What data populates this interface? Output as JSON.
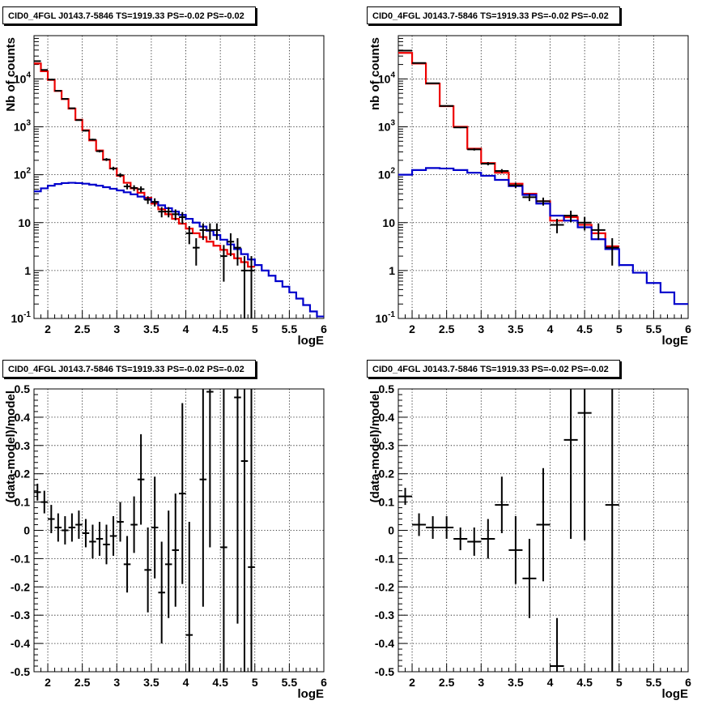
{
  "colors": {
    "data": "#000000",
    "total_model": "#ee0000",
    "component_model": "#0000cc",
    "grid": "#000000"
  },
  "chart_data": [
    {
      "type": "line",
      "title": "CID0_4FGL J0143.7-5846 TS=1919.33 PS=-0.02 PS=-0.02",
      "xlabel": "logE",
      "ylabel": "Nb of counts",
      "xlim": [
        1.8,
        6.0
      ],
      "ylim": [
        0.1,
        80000
      ],
      "yscale": "log",
      "grid": true,
      "xticks": [
        2,
        2.5,
        3,
        3.5,
        4,
        4.5,
        5,
        5.5,
        6
      ],
      "xtick_labels": [
        "2",
        "2.5",
        "3",
        "3.5",
        "4",
        "4.5",
        "5",
        "5.5",
        "6"
      ],
      "yticks": [
        0.1,
        1,
        10,
        100,
        1000,
        10000
      ],
      "ytick_labels": [
        "10^-1",
        "1",
        "10",
        "10^2",
        "10^3",
        "10^4"
      ],
      "bin_width": 0.1,
      "series": [
        {
          "role": "histogram",
          "color": "red",
          "x": [
            1.85,
            1.95,
            2.05,
            2.15,
            2.25,
            2.35,
            2.45,
            2.55,
            2.65,
            2.75,
            2.85,
            2.95,
            3.05,
            3.15,
            3.25,
            3.35,
            3.45,
            3.55,
            3.65,
            3.75,
            3.85,
            3.95,
            4.05,
            4.15,
            4.25,
            4.35,
            4.45,
            4.55,
            4.65,
            4.75,
            4.85,
            4.95
          ],
          "y": [
            21000,
            14500,
            9500,
            5600,
            3800,
            2400,
            1400,
            850,
            520,
            320,
            205,
            135,
            95,
            68,
            52,
            42,
            33,
            25,
            19,
            15,
            12,
            9.5,
            7.5,
            6,
            5,
            4,
            3.3,
            2.7,
            2.2,
            1.8,
            1.5,
            1.2
          ]
        },
        {
          "role": "histogram",
          "color": "blue",
          "x": [
            1.85,
            1.95,
            2.05,
            2.15,
            2.25,
            2.35,
            2.45,
            2.55,
            2.65,
            2.75,
            2.85,
            2.95,
            3.05,
            3.15,
            3.25,
            3.35,
            3.45,
            3.55,
            3.65,
            3.75,
            3.85,
            3.95,
            4.05,
            4.15,
            4.25,
            4.35,
            4.45,
            4.55,
            4.65,
            4.75,
            4.85,
            4.95,
            5.05,
            5.15,
            5.25,
            5.35,
            5.45,
            5.55,
            5.65,
            5.75,
            5.85,
            5.95
          ],
          "y": [
            45,
            52,
            59,
            64,
            67,
            68,
            67,
            65,
            62,
            59,
            55,
            51,
            47,
            43,
            39,
            35,
            31,
            27,
            23,
            20,
            17,
            14.5,
            12,
            10,
            8.3,
            6.8,
            5.5,
            4.4,
            3.5,
            2.8,
            2.2,
            1.7,
            1.3,
            1.0,
            0.78,
            0.6,
            0.46,
            0.35,
            0.26,
            0.19,
            0.14,
            0.11
          ]
        },
        {
          "role": "data",
          "x": [
            1.85,
            1.95,
            2.05,
            2.15,
            2.25,
            2.35,
            2.45,
            2.55,
            2.65,
            2.75,
            2.85,
            2.95,
            3.05,
            3.15,
            3.25,
            3.35,
            3.45,
            3.55,
            3.65,
            3.75,
            3.85,
            3.95,
            4.05,
            4.15,
            4.25,
            4.35,
            4.45,
            4.55,
            4.65,
            4.75,
            4.85,
            4.95
          ],
          "y": [
            23500,
            15400,
            9700,
            5650,
            3830,
            2440,
            1380,
            830,
            540,
            310,
            208,
            135,
            98,
            57,
            53,
            50,
            30,
            27,
            17,
            17,
            15,
            13,
            6,
            3,
            7,
            7,
            7,
            2,
            4,
            3,
            1,
            1
          ]
        }
      ]
    },
    {
      "type": "line",
      "title": "CID0_4FGL J0143.7-5846 TS=1919.33 PS=-0.02 PS=-0.02",
      "xlabel": "logE",
      "ylabel": "nb of counts",
      "xlim": [
        1.8,
        6.0
      ],
      "ylim": [
        0.1,
        80000
      ],
      "yscale": "log",
      "grid": true,
      "xticks": [
        2,
        2.5,
        3,
        3.5,
        4,
        4.5,
        5,
        5.5,
        6
      ],
      "xtick_labels": [
        "2",
        "2.5",
        "3",
        "3.5",
        "4",
        "4.5",
        "5",
        "5.5",
        "6"
      ],
      "yticks": [
        0.1,
        1,
        10,
        100,
        1000,
        10000
      ],
      "ytick_labels": [
        "10^-1",
        "1",
        "10",
        "10^2",
        "10^3",
        "10^4"
      ],
      "bin_width": 0.2,
      "series": [
        {
          "role": "histogram",
          "color": "red",
          "x": [
            1.9,
            2.1,
            2.3,
            2.5,
            2.7,
            2.9,
            3.1,
            3.3,
            3.5,
            3.7,
            3.9,
            4.1,
            4.3,
            4.5,
            4.7,
            4.9
          ],
          "y": [
            35000,
            21000,
            8000,
            2700,
            1000,
            350,
            175,
            110,
            65,
            40,
            28,
            11,
            13,
            9,
            6,
            3.2
          ]
        },
        {
          "role": "histogram",
          "color": "blue",
          "x": [
            1.9,
            2.1,
            2.3,
            2.5,
            2.7,
            2.9,
            3.1,
            3.3,
            3.5,
            3.7,
            3.9,
            4.1,
            4.3,
            4.5,
            4.7,
            4.9,
            5.1,
            5.3,
            5.5,
            5.7,
            5.9
          ],
          "y": [
            100,
            125,
            138,
            135,
            125,
            110,
            95,
            78,
            58,
            38,
            25,
            14,
            11,
            8,
            4.5,
            2.8,
            1.3,
            0.9,
            0.55,
            0.35,
            0.2
          ]
        },
        {
          "role": "data",
          "x": [
            1.9,
            2.1,
            2.3,
            2.5,
            2.7,
            2.9,
            3.1,
            3.3,
            3.5,
            3.7,
            3.9,
            4.1,
            4.3,
            4.5,
            4.7,
            4.9
          ],
          "y": [
            39000,
            21500,
            8100,
            2730,
            970,
            338,
            170,
            120,
            60,
            34,
            28,
            9,
            14,
            10,
            7,
            3
          ]
        }
      ]
    },
    {
      "type": "scatter",
      "title": "CID0_4FGL J0143.7-5846 TS=1919.33 PS=-0.02 PS=-0.02",
      "xlabel": "logE",
      "ylabel": "(data-model)/model",
      "xlim": [
        1.8,
        6.0
      ],
      "ylim": [
        -0.5,
        0.5
      ],
      "grid": true,
      "xticks": [
        2,
        2.5,
        3,
        3.5,
        4,
        4.5,
        5,
        5.5,
        6
      ],
      "xtick_labels": [
        "2",
        "2.5",
        "3",
        "3.5",
        "4",
        "4.5",
        "5",
        "5.5",
        "6"
      ],
      "yticks": [
        -0.5,
        -0.4,
        -0.3,
        -0.2,
        -0.1,
        0,
        0.1,
        0.2,
        0.3,
        0.4,
        0.5
      ],
      "ytick_labels": [
        "-0.5",
        "-0.4",
        "-0.3",
        "-0.2",
        "-0.1",
        "0",
        "0.1",
        "0.2",
        "0.3",
        "0.4",
        "0.5"
      ],
      "bin_width": 0.1,
      "points": {
        "x": [
          1.85,
          1.95,
          2.05,
          2.15,
          2.25,
          2.35,
          2.45,
          2.55,
          2.65,
          2.75,
          2.85,
          2.95,
          3.05,
          3.15,
          3.25,
          3.35,
          3.45,
          3.55,
          3.65,
          3.75,
          3.85,
          3.95,
          4.05,
          4.25,
          4.35,
          4.55,
          4.75,
          4.85,
          4.95
        ],
        "y": [
          0.135,
          0.1,
          0.04,
          0.01,
          0.0,
          0.01,
          0.02,
          -0.01,
          -0.04,
          -0.03,
          -0.05,
          -0.02,
          0.03,
          -0.12,
          0.02,
          0.18,
          -0.14,
          0.01,
          -0.22,
          -0.12,
          -0.07,
          0.13,
          -0.37,
          0.18,
          0.49,
          -0.06,
          0.47,
          0.245,
          -0.13
        ],
        "err": [
          0.03,
          0.04,
          0.05,
          0.05,
          0.05,
          0.05,
          0.05,
          0.05,
          0.06,
          0.06,
          0.07,
          0.07,
          0.07,
          0.1,
          0.1,
          0.16,
          0.15,
          0.18,
          0.18,
          0.19,
          0.2,
          0.32,
          0.4,
          0.45,
          0.55,
          0.6,
          0.8,
          0.95,
          1.0
        ]
      }
    },
    {
      "type": "scatter",
      "title": "CID0_4FGL J0143.7-5846 TS=1919.33 PS=-0.02 PS=-0.02",
      "xlabel": "logE",
      "ylabel": "(data-model)/model",
      "xlim": [
        1.8,
        6.0
      ],
      "ylim": [
        -0.5,
        0.5
      ],
      "grid": true,
      "xticks": [
        2,
        2.5,
        3,
        3.5,
        4,
        4.5,
        5,
        5.5,
        6
      ],
      "xtick_labels": [
        "2",
        "2.5",
        "3",
        "3.5",
        "4",
        "4.5",
        "5",
        "5.5",
        "6"
      ],
      "yticks": [
        -0.5,
        -0.4,
        -0.3,
        -0.2,
        -0.1,
        0,
        0.1,
        0.2,
        0.3,
        0.4,
        0.5
      ],
      "ytick_labels": [
        "-0.5",
        "-0.4",
        "-0.3",
        "-0.2",
        "-0.1",
        "0",
        "0.1",
        "0.2",
        "0.3",
        "0.4",
        "0.5"
      ],
      "bin_width": 0.2,
      "points": {
        "x": [
          1.9,
          2.1,
          2.3,
          2.5,
          2.7,
          2.9,
          3.1,
          3.3,
          3.5,
          3.7,
          3.9,
          4.1,
          4.3,
          4.5,
          4.9
        ],
        "y": [
          0.12,
          0.02,
          0.01,
          0.01,
          -0.03,
          -0.04,
          -0.03,
          0.09,
          -0.07,
          -0.17,
          0.02,
          -0.48,
          0.32,
          0.415,
          0.09
        ],
        "err": [
          0.03,
          0.04,
          0.04,
          0.04,
          0.04,
          0.05,
          0.07,
          0.1,
          0.12,
          0.14,
          0.2,
          0.17,
          0.35,
          0.45,
          1.0
        ]
      }
    }
  ]
}
